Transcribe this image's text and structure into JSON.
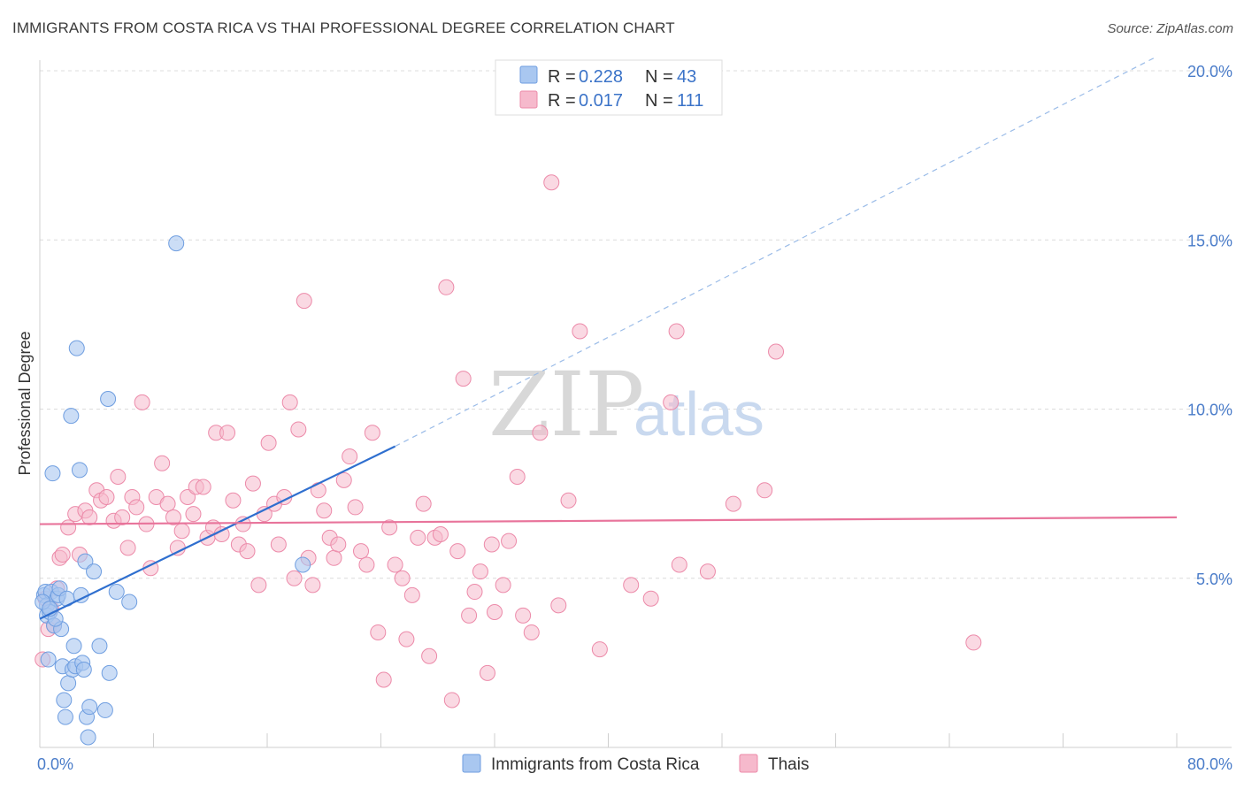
{
  "title": "IMMIGRANTS FROM COSTA RICA VS THAI PROFESSIONAL DEGREE CORRELATION CHART",
  "source": "Source: ZipAtlas.com",
  "watermark": {
    "zip": "ZIP",
    "atlas": "atlas"
  },
  "legend": {
    "series": [
      {
        "r_label": "R =",
        "r_value": "0.228",
        "n_label": "N =",
        "n_value": "43"
      },
      {
        "r_label": "R =",
        "r_value": "0.017",
        "n_label": "N =",
        "n_value": "111"
      }
    ]
  },
  "chart_data": {
    "type": "scatter",
    "ylabel": "Professional Degree",
    "xlim": [
      0,
      80
    ],
    "ylim": [
      0,
      20
    ],
    "x_tick_labels": [
      "0.0%",
      "80.0%"
    ],
    "y_ticks": [
      5,
      10,
      15,
      20
    ],
    "y_tick_labels": [
      "5.0%",
      "10.0%",
      "15.0%",
      "20.0%"
    ],
    "grid": "horizontal-dashed",
    "legend_position": "top-center",
    "colors": {
      "costa_rica_fill": "#a9c7f0",
      "costa_rica_stroke": "#6f9ee0",
      "costa_rica_line": "#2f6fcf",
      "thai_fill": "#f6b9cc",
      "thai_stroke": "#ec8aa9",
      "thai_line": "#e8749b"
    },
    "series": [
      {
        "name": "Immigrants from Costa Rica",
        "color": "#a9c7f0",
        "trend": {
          "x0": 0,
          "y0": 3.8,
          "x1": 25,
          "y1": 8.9,
          "dash_to_x": 78.5,
          "dash_to_y": 20.4
        },
        "points": [
          [
            0.3,
            4.5
          ],
          [
            0.4,
            4.6
          ],
          [
            0.5,
            4.2
          ],
          [
            0.5,
            3.9
          ],
          [
            0.6,
            2.6
          ],
          [
            0.7,
            4.0
          ],
          [
            0.8,
            4.6
          ],
          [
            0.9,
            8.1
          ],
          [
            1.0,
            3.6
          ],
          [
            1.2,
            4.4
          ],
          [
            1.3,
            4.5
          ],
          [
            1.4,
            4.7
          ],
          [
            1.5,
            3.5
          ],
          [
            1.6,
            2.4
          ],
          [
            1.7,
            1.4
          ],
          [
            1.8,
            0.9
          ],
          [
            1.9,
            4.4
          ],
          [
            2.0,
            1.9
          ],
          [
            2.2,
            9.8
          ],
          [
            2.3,
            2.3
          ],
          [
            2.4,
            3.0
          ],
          [
            2.5,
            2.4
          ],
          [
            2.6,
            11.8
          ],
          [
            2.8,
            8.2
          ],
          [
            2.9,
            4.5
          ],
          [
            3.0,
            2.5
          ],
          [
            3.1,
            2.3
          ],
          [
            3.2,
            5.5
          ],
          [
            3.3,
            0.9
          ],
          [
            3.4,
            0.3
          ],
          [
            3.5,
            1.2
          ],
          [
            3.8,
            5.2
          ],
          [
            4.2,
            3.0
          ],
          [
            4.6,
            1.1
          ],
          [
            4.9,
            2.2
          ],
          [
            4.8,
            10.3
          ],
          [
            5.4,
            4.6
          ],
          [
            6.3,
            4.3
          ],
          [
            9.6,
            14.9
          ],
          [
            18.5,
            5.4
          ],
          [
            0.2,
            4.3
          ],
          [
            1.1,
            3.8
          ],
          [
            0.7,
            4.1
          ]
        ]
      },
      {
        "name": "Thais",
        "color": "#f6b9cc",
        "trend": {
          "x0": 0,
          "y0": 6.6,
          "x1": 80,
          "y1": 6.8
        },
        "points": [
          [
            0.2,
            2.6
          ],
          [
            0.4,
            4.4
          ],
          [
            0.6,
            3.5
          ],
          [
            0.8,
            4.1
          ],
          [
            1.0,
            3.6
          ],
          [
            1.2,
            4.7
          ],
          [
            1.4,
            5.6
          ],
          [
            1.6,
            5.7
          ],
          [
            2.0,
            6.5
          ],
          [
            2.5,
            6.9
          ],
          [
            2.8,
            5.7
          ],
          [
            3.2,
            7.0
          ],
          [
            3.5,
            6.8
          ],
          [
            4.0,
            7.6
          ],
          [
            4.3,
            7.3
          ],
          [
            4.7,
            7.4
          ],
          [
            5.2,
            6.7
          ],
          [
            5.5,
            8.0
          ],
          [
            5.8,
            6.8
          ],
          [
            6.2,
            5.9
          ],
          [
            6.5,
            7.4
          ],
          [
            6.8,
            7.1
          ],
          [
            7.2,
            10.2
          ],
          [
            7.5,
            6.6
          ],
          [
            7.8,
            5.3
          ],
          [
            8.2,
            7.4
          ],
          [
            8.6,
            8.4
          ],
          [
            9.0,
            7.2
          ],
          [
            9.4,
            6.8
          ],
          [
            9.7,
            5.9
          ],
          [
            10.0,
            6.4
          ],
          [
            10.4,
            7.4
          ],
          [
            10.8,
            6.9
          ],
          [
            11.0,
            7.7
          ],
          [
            11.5,
            7.7
          ],
          [
            11.8,
            6.2
          ],
          [
            12.2,
            6.5
          ],
          [
            12.4,
            9.3
          ],
          [
            12.8,
            6.3
          ],
          [
            13.2,
            9.3
          ],
          [
            13.6,
            7.3
          ],
          [
            14.0,
            6.0
          ],
          [
            14.3,
            6.6
          ],
          [
            14.6,
            5.8
          ],
          [
            15.0,
            7.8
          ],
          [
            15.4,
            4.8
          ],
          [
            15.8,
            6.9
          ],
          [
            16.1,
            9.0
          ],
          [
            16.5,
            7.2
          ],
          [
            16.8,
            6.0
          ],
          [
            17.2,
            7.4
          ],
          [
            17.6,
            10.2
          ],
          [
            17.9,
            5.0
          ],
          [
            18.2,
            9.4
          ],
          [
            18.6,
            13.2
          ],
          [
            18.9,
            5.6
          ],
          [
            19.2,
            4.8
          ],
          [
            19.6,
            7.6
          ],
          [
            20.0,
            7.0
          ],
          [
            20.4,
            6.2
          ],
          [
            20.7,
            5.6
          ],
          [
            21.0,
            6.0
          ],
          [
            21.4,
            7.9
          ],
          [
            21.8,
            8.6
          ],
          [
            22.2,
            7.1
          ],
          [
            22.6,
            5.8
          ],
          [
            23.0,
            5.4
          ],
          [
            23.4,
            9.3
          ],
          [
            23.8,
            3.4
          ],
          [
            24.2,
            2.0
          ],
          [
            24.6,
            6.5
          ],
          [
            25.0,
            5.4
          ],
          [
            25.5,
            5.0
          ],
          [
            25.8,
            3.2
          ],
          [
            26.2,
            4.5
          ],
          [
            26.6,
            6.2
          ],
          [
            27.0,
            7.2
          ],
          [
            27.4,
            2.7
          ],
          [
            27.8,
            6.2
          ],
          [
            28.2,
            6.3
          ],
          [
            28.6,
            13.6
          ],
          [
            29.0,
            1.4
          ],
          [
            29.4,
            5.8
          ],
          [
            29.8,
            10.9
          ],
          [
            30.2,
            3.9
          ],
          [
            30.6,
            4.6
          ],
          [
            31.0,
            5.2
          ],
          [
            31.5,
            2.2
          ],
          [
            32.0,
            4.0
          ],
          [
            32.6,
            4.8
          ],
          [
            33.0,
            6.1
          ],
          [
            33.6,
            8.0
          ],
          [
            34.0,
            3.9
          ],
          [
            34.6,
            3.4
          ],
          [
            35.2,
            9.3
          ],
          [
            36.0,
            16.7
          ],
          [
            36.5,
            4.2
          ],
          [
            37.2,
            7.3
          ],
          [
            38.0,
            12.3
          ],
          [
            39.4,
            2.9
          ],
          [
            41.6,
            4.8
          ],
          [
            43.0,
            4.4
          ],
          [
            44.4,
            10.2
          ],
          [
            44.8,
            12.3
          ],
          [
            45.0,
            5.4
          ],
          [
            47.0,
            5.2
          ],
          [
            48.8,
            7.2
          ],
          [
            51.0,
            7.6
          ],
          [
            51.8,
            11.7
          ],
          [
            65.7,
            3.1
          ],
          [
            31.8,
            6.0
          ]
        ]
      }
    ]
  }
}
